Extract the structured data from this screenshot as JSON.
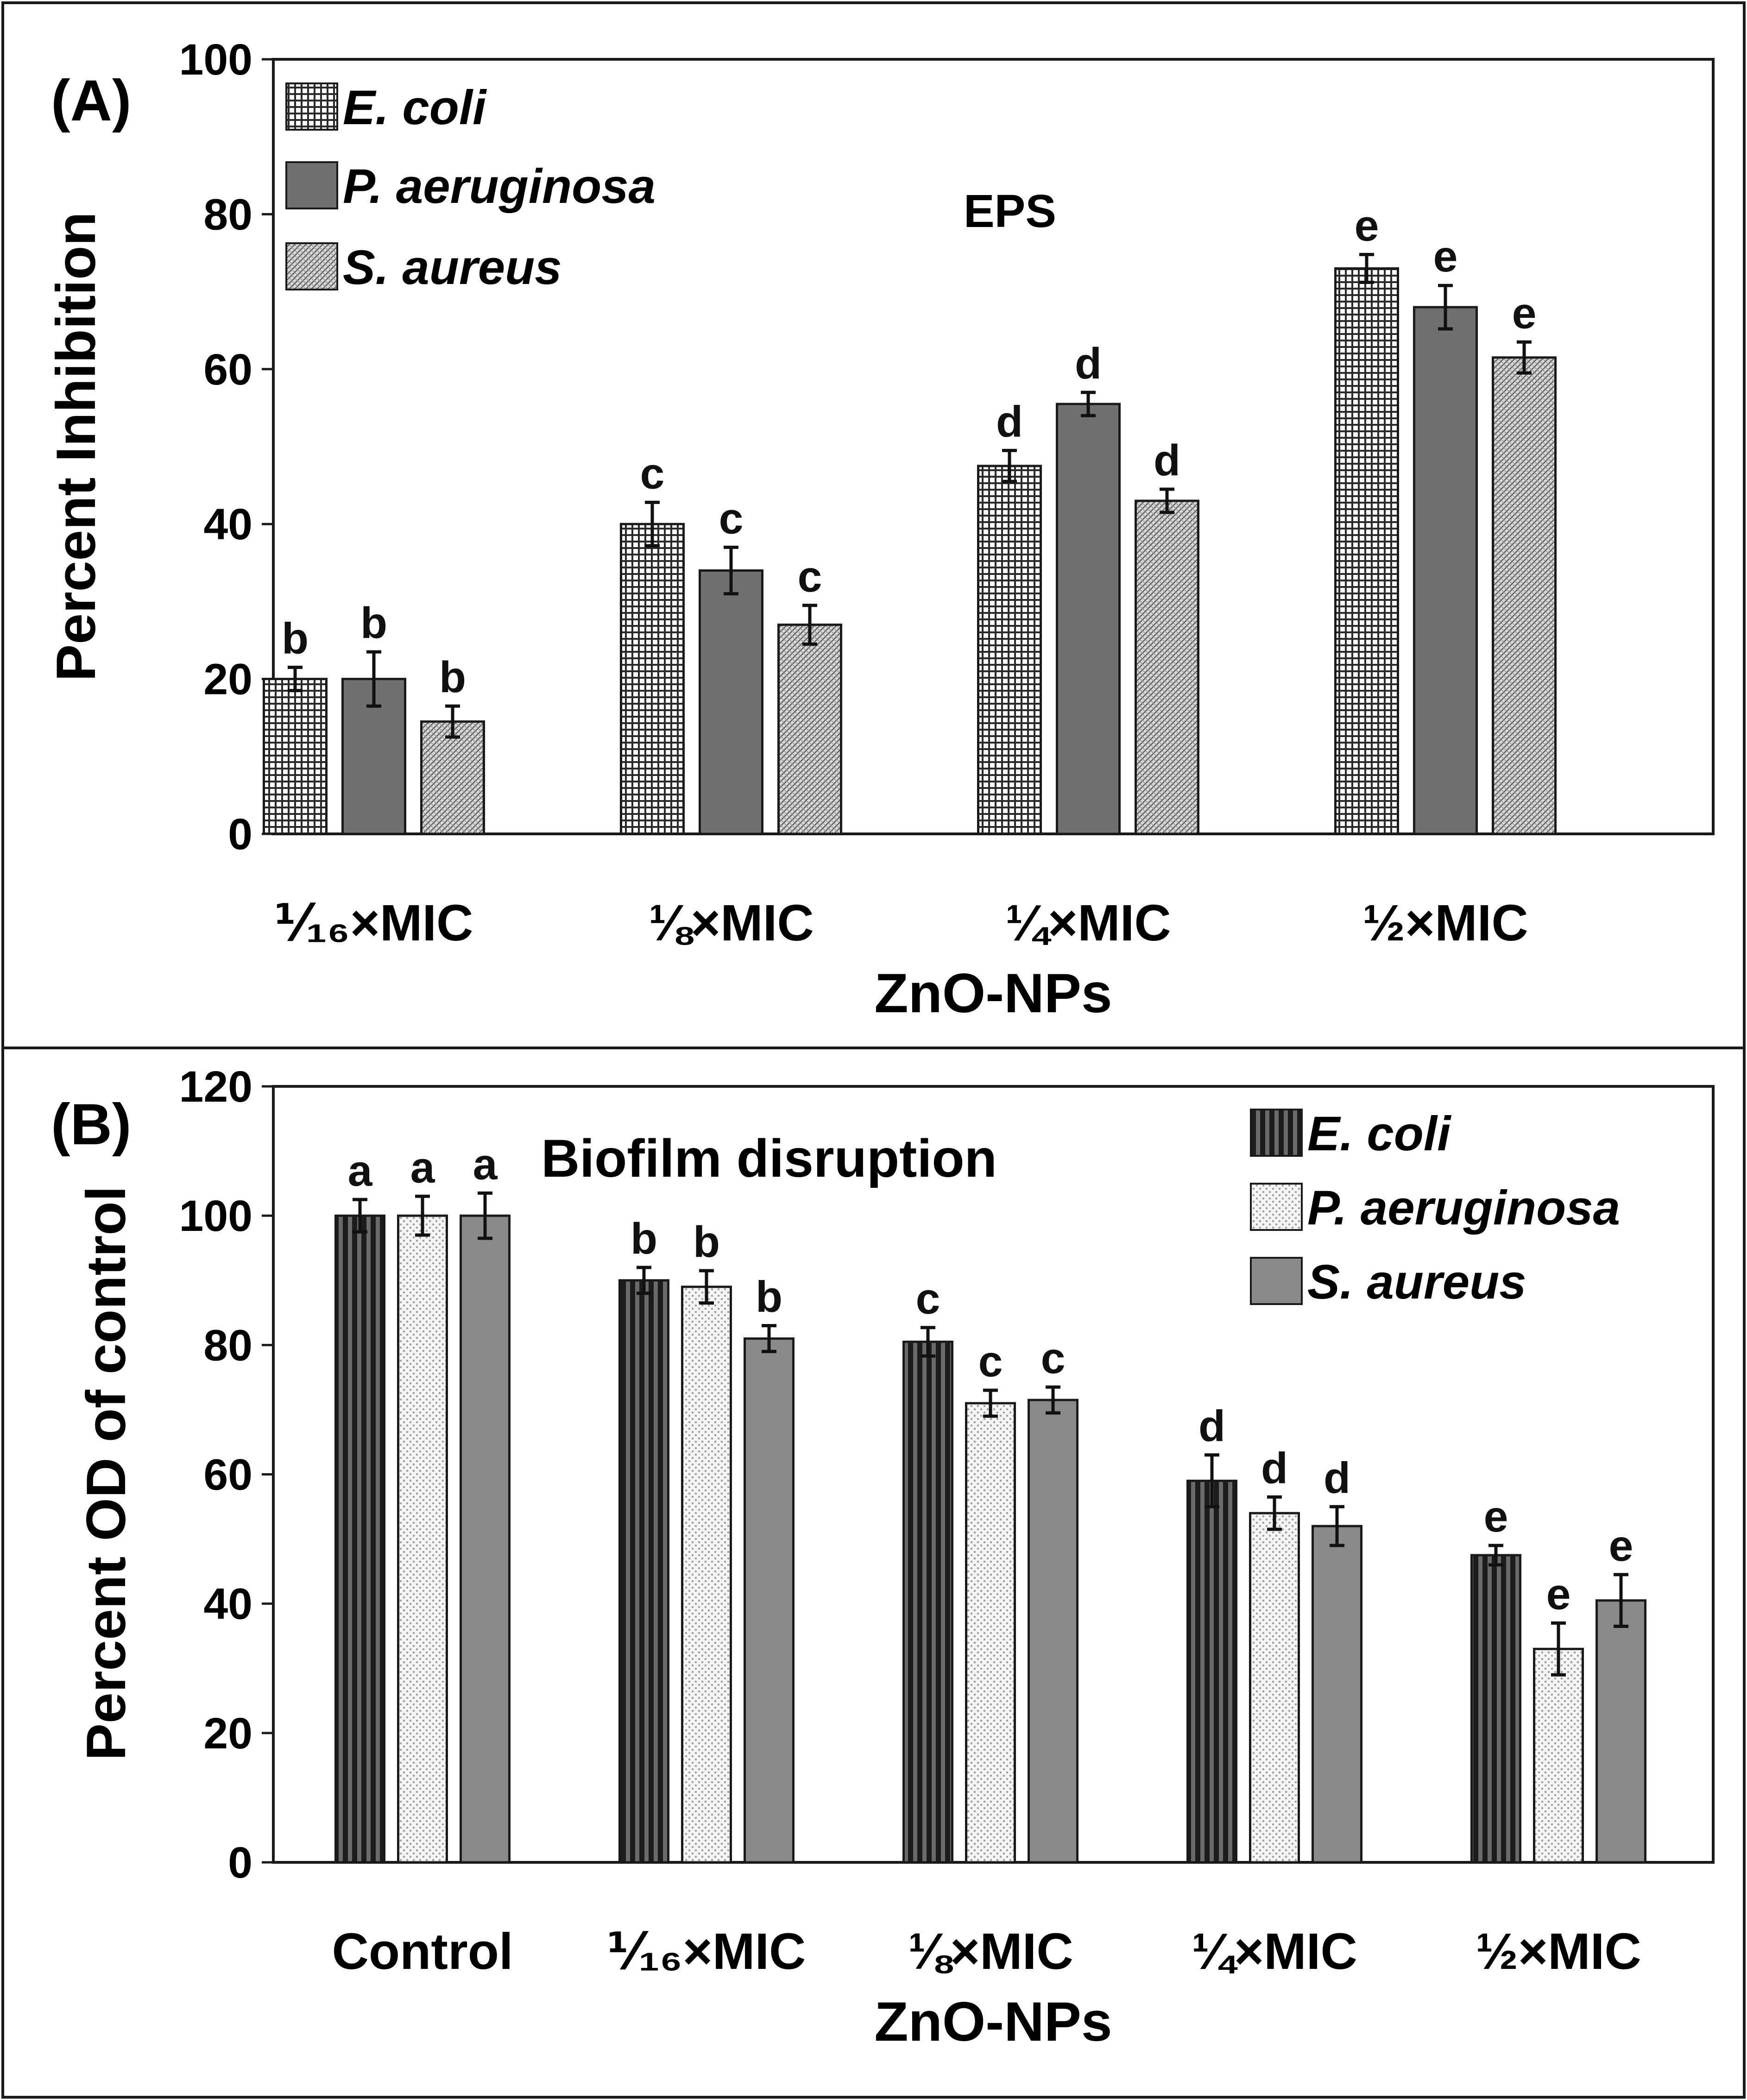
{
  "figure": {
    "panels": [
      "A",
      "B"
    ]
  },
  "colors": {
    "frame": "#1a1a1a",
    "ink": "#111111",
    "bar_dark": "#707070",
    "bar_mid": "#8a8a8a",
    "bar_light": "#e6e6e6",
    "stripe_dark": "#1c1c1c"
  },
  "chart_data": [
    {
      "type": "bar",
      "panel_label": "(A)",
      "title": "EPS",
      "xlabel": "ZnO-NPs",
      "ylabel": "Percent Inhibition",
      "ylim": [
        0,
        100
      ],
      "yticks": [
        0,
        20,
        40,
        60,
        80,
        100
      ],
      "categories": [
        "⅟₁₆×MIC",
        "⅛×MIC",
        "¼×MIC",
        "½×MIC"
      ],
      "legend_position": "top-left",
      "series": [
        {
          "name": "E. coli",
          "pattern": "grid",
          "values": [
            20,
            40,
            47.5,
            73
          ],
          "errors": [
            1.5,
            2.8,
            2,
            1.8
          ],
          "letters": [
            "b",
            "c",
            "d",
            "e"
          ]
        },
        {
          "name": "P. aeruginosa",
          "pattern": "solid",
          "values": [
            20,
            34,
            55.5,
            68
          ],
          "errors": [
            3.5,
            3,
            1.5,
            2.8
          ],
          "letters": [
            "b",
            "c",
            "d",
            "e"
          ]
        },
        {
          "name": "S. aureus",
          "pattern": "hatch",
          "values": [
            14.5,
            27,
            43,
            61.5
          ],
          "errors": [
            2,
            2.5,
            1.5,
            2
          ],
          "letters": [
            "b",
            "c",
            "d",
            "e"
          ]
        }
      ]
    },
    {
      "type": "bar",
      "panel_label": "(B)",
      "title": "Biofilm disruption",
      "xlabel": "ZnO-NPs",
      "ylabel": "Percent OD of control",
      "ylim": [
        0,
        120
      ],
      "yticks": [
        0,
        20,
        40,
        60,
        80,
        100,
        120
      ],
      "categories": [
        "Control",
        "⅟₁₆×MIC",
        "⅛×MIC",
        "¼×MIC",
        "½×MIC"
      ],
      "legend_position": "top-right",
      "series": [
        {
          "name": "E. coli",
          "pattern": "vstripe",
          "values": [
            100,
            90,
            80.5,
            59,
            47.5
          ],
          "errors": [
            2.5,
            2,
            2.2,
            4,
            1.5
          ],
          "letters": [
            "a",
            "b",
            "c",
            "d",
            "e"
          ]
        },
        {
          "name": "P. aeruginosa",
          "pattern": "dots",
          "values": [
            100,
            89,
            71,
            54,
            33
          ],
          "errors": [
            3,
            2.5,
            2,
            2.5,
            4
          ],
          "letters": [
            "a",
            "b",
            "c",
            "d",
            "e"
          ]
        },
        {
          "name": "S. aureus",
          "pattern": "solid",
          "values": [
            100,
            81,
            71.5,
            52,
            40.5
          ],
          "errors": [
            3.5,
            2,
            2,
            3,
            4
          ],
          "letters": [
            "a",
            "b",
            "c",
            "d",
            "e"
          ]
        }
      ]
    }
  ]
}
